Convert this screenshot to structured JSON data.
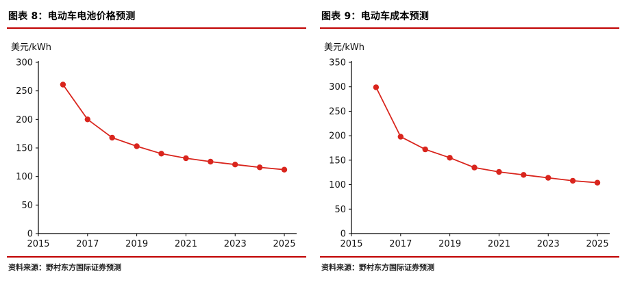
{
  "accent_color": "#c00000",
  "line_color": "#d9251d",
  "chart_data": [
    {
      "type": "line",
      "title": "图表 8：电动车电池价格预测",
      "ylabel": "美元/kWh",
      "xlabel": "",
      "source": "资料来源：野村东方国际证券预测",
      "x": [
        2016,
        2017,
        2018,
        2019,
        2020,
        2021,
        2022,
        2023,
        2024,
        2025
      ],
      "values": [
        261,
        200,
        168,
        153,
        140,
        132,
        126,
        121,
        116,
        112
      ],
      "xlim": [
        2015,
        2025.5
      ],
      "xticks": [
        2015,
        2017,
        2019,
        2021,
        2023,
        2025
      ],
      "ylim": [
        0,
        300
      ],
      "ytick_step": 50,
      "grid": false,
      "legend": "none"
    },
    {
      "type": "line",
      "title": "图表 9：电动车成本预测",
      "ylabel": "美元/kWh",
      "xlabel": "",
      "source": "资料来源：野村东方国际证券预测",
      "x": [
        2016,
        2017,
        2018,
        2019,
        2020,
        2021,
        2022,
        2023,
        2024,
        2025
      ],
      "values": [
        299,
        198,
        172,
        155,
        135,
        126,
        120,
        114,
        108,
        104
      ],
      "xlim": [
        2015,
        2025.5
      ],
      "xticks": [
        2015,
        2017,
        2019,
        2021,
        2023,
        2025
      ],
      "ylim": [
        0,
        350
      ],
      "ytick_step": 50,
      "grid": false,
      "legend": "none"
    }
  ]
}
